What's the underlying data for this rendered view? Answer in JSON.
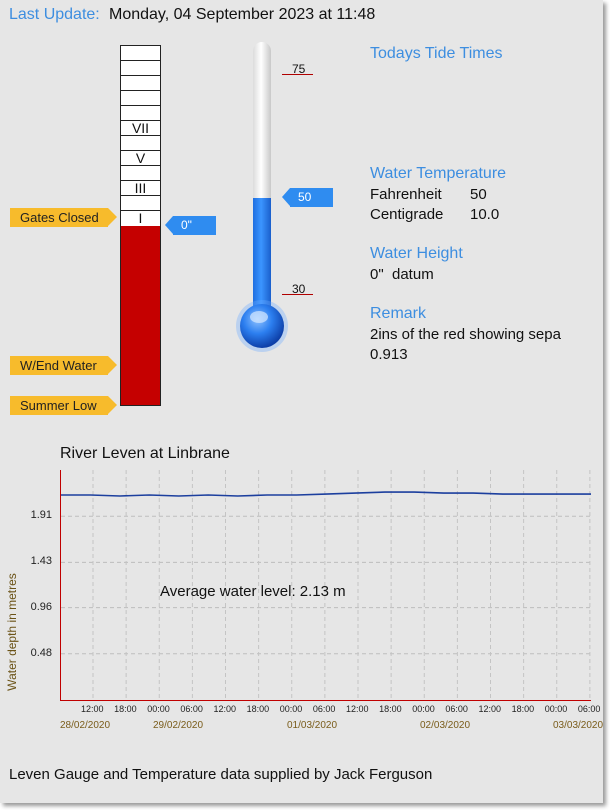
{
  "header": {
    "label": "Last Update:",
    "datetime": "Monday, 04 September 2023 at 11:48"
  },
  "gauge": {
    "markings": [
      "VII",
      "V",
      "III",
      "I"
    ],
    "tags": {
      "gates_closed": "Gates Closed",
      "wend_water": "W/End Water",
      "summer_low": "Summer Low"
    },
    "pointer": "0\""
  },
  "thermometer": {
    "scale_top": "75",
    "scale_bottom": "30",
    "pointer": "50",
    "level_fraction": 0.5
  },
  "tide": {
    "title": "Todays Tide Times"
  },
  "water_temperature": {
    "title": "Water Temperature",
    "f_label": "Fahrenheit",
    "f_value": "50",
    "c_label": "Centigrade",
    "c_value": "10.0"
  },
  "water_height": {
    "title": "Water Height",
    "value": "0\"  datum"
  },
  "remark": {
    "title": "Remark",
    "line1": "2ins of the red showing sepa",
    "line2": "0.913"
  },
  "chart_data": {
    "type": "line",
    "title": "River Leven at Linbrane",
    "ylabel": "Water depth in metres",
    "annotation": "Average water level: 2.13 m",
    "y_ticks": [
      "1.91",
      "1.43",
      "0.96",
      "0.48"
    ],
    "ylim": [
      0,
      2.39
    ],
    "x_ticks": [
      "12:00",
      "18:00",
      "00:00",
      "06:00",
      "12:00",
      "18:00",
      "00:00",
      "06:00",
      "12:00",
      "18:00",
      "00:00",
      "06:00",
      "12:00",
      "18:00",
      "00:00",
      "06:00"
    ],
    "date_labels": [
      "28/02/2020",
      "29/02/2020",
      "01/03/2020",
      "02/03/2020",
      "03/03/2020"
    ],
    "series": [
      {
        "color": "#1c3f9e",
        "values": [
          2.13,
          2.13,
          2.12,
          2.13,
          2.12,
          2.13,
          2.12,
          2.13,
          2.13,
          2.14,
          2.15,
          2.16,
          2.16,
          2.15,
          2.15,
          2.14,
          2.14,
          2.14,
          2.14
        ]
      }
    ]
  },
  "footer": {
    "credit": "Leven Gauge and Temperature data supplied by Jack Ferguson"
  }
}
